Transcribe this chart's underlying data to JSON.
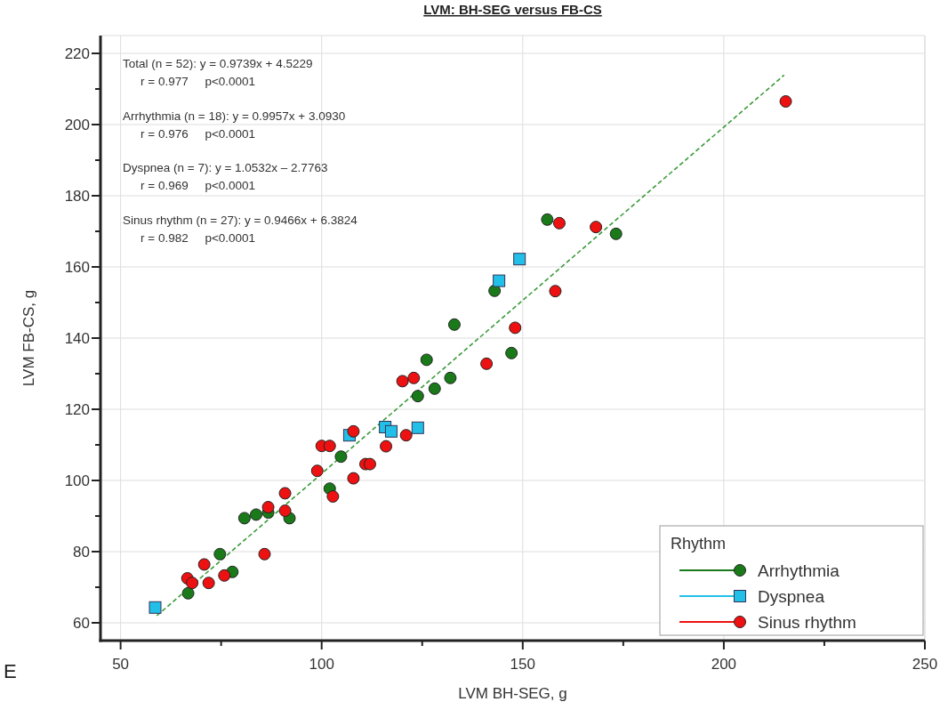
{
  "chart_data": {
    "type": "scatter",
    "title": "LVM: BH-SEG versus FB-CS",
    "xlabel": "LVM BH-SEG, g",
    "ylabel": "LVM FB-CS, g",
    "legend_title": "Rhythm",
    "xlim": [
      45,
      250
    ],
    "ylim": [
      55,
      225
    ],
    "xticks": [
      50,
      {
        "value": 75,
        "label": null
      },
      100,
      {
        "value": 125,
        "label": null
      },
      150,
      {
        "value": 175,
        "label": null
      },
      200,
      {
        "value": 225,
        "label": null
      },
      250
    ],
    "yticks": [
      60,
      {
        "value": 70,
        "label": null
      },
      80,
      {
        "value": 90,
        "label": null
      },
      100,
      {
        "value": 110,
        "label": null
      },
      120,
      {
        "value": 130,
        "label": null
      },
      140,
      {
        "value": 150,
        "label": null
      },
      160,
      {
        "value": 170,
        "label": null
      },
      180,
      {
        "value": 190,
        "label": null
      },
      200,
      {
        "value": 210,
        "label": null
      },
      220
    ],
    "grid": true,
    "legend": "bottom right",
    "annotations": [
      "Total (n = 52): y = 0.9739x + 4.5229",
      "r = 0.977     p<0.0001",
      "Arrhythmia (n = 18): y = 0.9957x + 3.0930",
      "r = 0.976     p<0.0001",
      "Dyspnea (n = 7): y = 1.0532x – 2.7763",
      "r = 0.969     p<0.0001",
      "Sinus rhythm (n = 27): y = 0.9466x + 6.3824",
      "r = 0.982     p<0.0001",
      "E"
    ],
    "series": [
      {
        "type": "line",
        "color": "#3a9a3a",
        "line_style": "dashed",
        "marker": "none",
        "x": [
          59,
          215
        ],
        "values": [
          62.0,
          213.9
        ]
      },
      {
        "name": "Arrhythmia",
        "color": "#1a7a1a",
        "marker": "circle",
        "x": [
          66.8,
          74.7,
          77.8,
          80.8,
          83.7,
          86.7,
          92.0,
          102.0,
          104.8,
          123.9,
          128.1,
          132.0,
          126.1,
          133.0,
          147.2,
          143.0,
          156.1,
          173.2
        ],
        "values": [
          68.3,
          79.3,
          74.3,
          89.4,
          90.4,
          91.0,
          89.4,
          97.7,
          106.7,
          123.7,
          125.8,
          128.8,
          133.9,
          143.8,
          135.8,
          153.3,
          173.3,
          169.3
        ]
      },
      {
        "name": "Dyspnea",
        "color": "#22c0e8",
        "marker": "square",
        "x": [
          58.6,
          106.9,
          115.8,
          117.3,
          123.9,
          144.1,
          149.2
        ],
        "values": [
          64.3,
          112.7,
          115.0,
          113.8,
          114.8,
          156.1,
          162.2
        ]
      },
      {
        "name": "Sinus rhythm",
        "color": "#ee1111",
        "marker": "circle",
        "x": [
          66.6,
          67.8,
          70.8,
          71.9,
          75.8,
          85.8,
          90.9,
          90.9,
          86.7,
          98.9,
          100.0,
          102.0,
          102.8,
          107.9,
          107.9,
          110.9,
          112.0,
          116.0,
          121.0,
          120.1,
          122.9,
          141.0,
          148.1,
          158.1,
          159.1,
          168.2,
          215.4
        ],
        "values": [
          72.5,
          71.2,
          76.4,
          71.2,
          73.3,
          79.3,
          96.4,
          91.5,
          92.5,
          102.7,
          109.7,
          109.7,
          95.5,
          113.8,
          100.6,
          104.6,
          104.6,
          109.6,
          112.7,
          127.9,
          128.8,
          132.8,
          142.9,
          153.2,
          172.3,
          171.2,
          206.5
        ]
      }
    ]
  }
}
